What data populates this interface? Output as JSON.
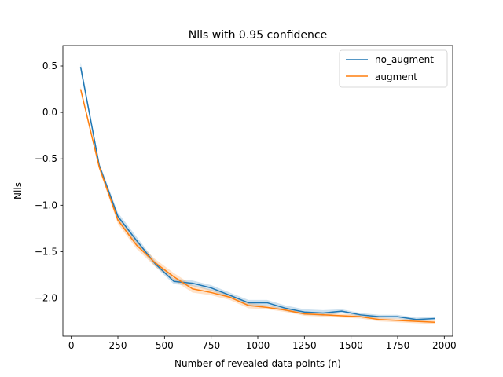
{
  "chart_data": {
    "type": "line",
    "title": "Nlls with 0.95 confidence",
    "xlabel": "Number of revealed data points (n)",
    "ylabel": "Nlls",
    "xlim": [
      -45,
      2045
    ],
    "ylim": [
      -2.41,
      0.72
    ],
    "xticks": [
      0,
      250,
      500,
      750,
      1000,
      1250,
      1500,
      1750,
      2000
    ],
    "xtick_labels": [
      "0",
      "250",
      "500",
      "750",
      "1000",
      "1250",
      "1500",
      "1750",
      "2000"
    ],
    "yticks": [
      0.5,
      0.0,
      -0.5,
      -1.0,
      -1.5,
      -2.0
    ],
    "ytick_labels": [
      "0.5",
      "0.0",
      "−0.5",
      "−1.0",
      "−1.5",
      "−2.0"
    ],
    "legend_position": "top-right",
    "grid": false,
    "x": [
      50,
      150,
      250,
      350,
      450,
      550,
      650,
      750,
      850,
      950,
      1050,
      1150,
      1250,
      1350,
      1450,
      1550,
      1650,
      1750,
      1850,
      1950
    ],
    "series": [
      {
        "name": "no_augment",
        "color": "#1f77b4",
        "values": [
          0.49,
          -0.57,
          -1.12,
          -1.38,
          -1.63,
          -1.82,
          -1.84,
          -1.89,
          -1.97,
          -2.05,
          -2.05,
          -2.11,
          -2.15,
          -2.16,
          -2.14,
          -2.18,
          -2.2,
          -2.2,
          -2.23,
          -2.22
        ],
        "band": [
          0.05,
          0.03,
          0.04,
          0.04,
          0.03,
          0.03,
          0.03,
          0.03,
          0.03,
          0.03,
          0.03,
          0.03,
          0.03,
          0.03,
          0.02,
          0.02,
          0.02,
          0.02,
          0.02,
          0.02
        ]
      },
      {
        "name": "augment",
        "color": "#ff7f0e",
        "values": [
          0.25,
          -0.59,
          -1.16,
          -1.43,
          -1.62,
          -1.77,
          -1.9,
          -1.94,
          -1.99,
          -2.08,
          -2.1,
          -2.13,
          -2.17,
          -2.18,
          -2.19,
          -2.2,
          -2.23,
          -2.24,
          -2.25,
          -2.26
        ],
        "band": [
          0.03,
          0.03,
          0.04,
          0.04,
          0.04,
          0.04,
          0.04,
          0.03,
          0.03,
          0.03,
          0.02,
          0.02,
          0.02,
          0.02,
          0.02,
          0.02,
          0.02,
          0.02,
          0.02,
          0.02
        ]
      }
    ]
  }
}
